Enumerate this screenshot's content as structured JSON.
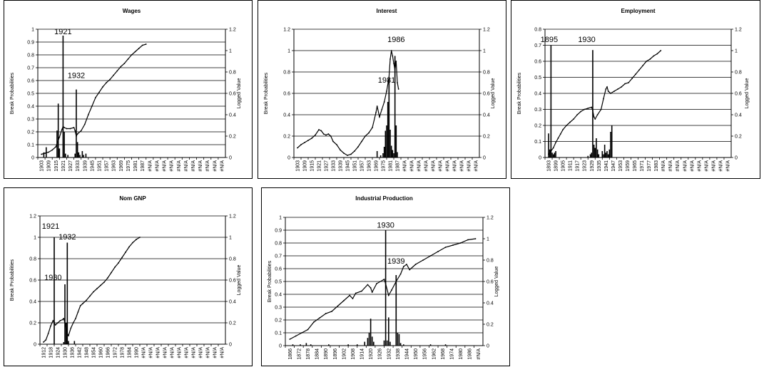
{
  "colors": {
    "line": "#000000",
    "bar": "#000000",
    "grid": "#000000",
    "background": "#ffffff"
  },
  "chart_data": [
    {
      "type": "bar",
      "title": "Wages",
      "ylabel": "Break Probabilities",
      "y2label": "Logged Value",
      "ylim": [
        0,
        1
      ],
      "y_ticks": [
        "0",
        "0.1",
        "0.2",
        "0.3",
        "0.4",
        "0.5",
        "0.6",
        "0.7",
        "0.8",
        "0.9",
        "1"
      ],
      "y2lim": [
        0,
        1.2
      ],
      "y2_ticks": [
        "0",
        "0.2",
        "0.4",
        "0.6",
        "0.8",
        "1",
        "1.2"
      ],
      "x_ticks": [
        "1903",
        "1909",
        "1915",
        "1921",
        "1927",
        "1933",
        "1939",
        "1945",
        "1951",
        "1957",
        "1963",
        "1969",
        "1975",
        "1981",
        "1987",
        "#N/A",
        "#N/A",
        "#N/A",
        "#N/A",
        "#N/A",
        "#N/A",
        "#N/A",
        "#N/A",
        "#N/A",
        "#N/A",
        "#N/A"
      ],
      "annotations": [
        {
          "text": "1921",
          "x": 1921,
          "y": 0.96
        },
        {
          "text": "1932",
          "x": 1932,
          "y": 0.62
        }
      ],
      "bar_series": {
        "name": "Break Probabilities",
        "x": [
          1905,
          1907,
          1916,
          1917,
          1918,
          1921,
          1922,
          1923,
          1925,
          1931,
          1932,
          1933,
          1934,
          1935,
          1937,
          1938,
          1940
        ],
        "values": [
          0.04,
          0.08,
          0.21,
          0.42,
          0.07,
          0.95,
          0.2,
          0.03,
          0.02,
          0.03,
          0.53,
          0.12,
          0.04,
          0.02,
          0.05,
          0.02,
          0.03
        ]
      },
      "line_series": {
        "name": "Logged Value",
        "x": [
          1903,
          1906,
          1909,
          1912,
          1915,
          1918,
          1920,
          1921,
          1922,
          1924,
          1927,
          1930,
          1931,
          1932,
          1933,
          1936,
          1939,
          1942,
          1945,
          1948,
          1951,
          1954,
          1957,
          1960,
          1963,
          1966,
          1969,
          1972,
          1975,
          1978,
          1981,
          1984,
          1987,
          1990
        ],
        "values": [
          0.03,
          0.04,
          0.05,
          0.07,
          0.1,
          0.19,
          0.26,
          0.29,
          0.28,
          0.27,
          0.27,
          0.28,
          0.25,
          0.2,
          0.22,
          0.25,
          0.31,
          0.4,
          0.48,
          0.56,
          0.61,
          0.66,
          0.7,
          0.73,
          0.77,
          0.81,
          0.85,
          0.88,
          0.92,
          0.96,
          0.99,
          1.02,
          1.05,
          1.06
        ]
      }
    },
    {
      "type": "bar",
      "title": "Interest",
      "ylabel": "Break Probabilities",
      "y2label": "Logged Value",
      "ylim": [
        0,
        1.2
      ],
      "y_ticks": [
        "0",
        "0.2",
        "0.4",
        "0.6",
        "0.8",
        "1",
        "1.2"
      ],
      "y2lim": [
        0,
        1.2
      ],
      "y2_ticks": [
        "0",
        "0.2",
        "0.4",
        "0.6",
        "0.8",
        "1",
        "1.2"
      ],
      "x_ticks": [
        "1903",
        "1909",
        "1915",
        "1921",
        "1927",
        "1933",
        "1939",
        "1945",
        "1951",
        "1957",
        "1963",
        "1969",
        "1975",
        "1981",
        "1987",
        "#N/A",
        "#N/A",
        "#N/A",
        "#N/A",
        "#N/A",
        "#N/A",
        "#N/A",
        "#N/A",
        "#N/A",
        "#N/A",
        "#N/A"
      ],
      "annotations": [
        {
          "text": "1986",
          "x": 1986,
          "y": 1.08
        },
        {
          "text": "1981",
          "x": 1978,
          "y": 0.7
        }
      ],
      "bar_series": {
        "name": "Break Probabilities",
        "x": [
          1970,
          1973,
          1975,
          1976,
          1977,
          1978,
          1979,
          1980,
          1981,
          1982,
          1983,
          1984,
          1985,
          1986,
          1987
        ],
        "values": [
          0.06,
          0.02,
          0.04,
          0.1,
          0.25,
          0.3,
          0.52,
          0.74,
          0.26,
          0.11,
          0.07,
          0.04,
          0.95,
          0.3,
          0.05
        ]
      },
      "line_series": {
        "name": "Logged Value",
        "x": [
          1903,
          1906,
          1909,
          1912,
          1915,
          1918,
          1921,
          1923,
          1925,
          1927,
          1929,
          1931,
          1933,
          1936,
          1939,
          1942,
          1945,
          1948,
          1951,
          1954,
          1957,
          1960,
          1963,
          1966,
          1969,
          1970,
          1972,
          1974,
          1976,
          1978,
          1980,
          1981,
          1982,
          1983,
          1984,
          1985,
          1986,
          1987,
          1988
        ],
        "values": [
          0.09,
          0.12,
          0.14,
          0.16,
          0.18,
          0.21,
          0.26,
          0.25,
          0.22,
          0.21,
          0.22,
          0.2,
          0.15,
          0.12,
          0.07,
          0.04,
          0.02,
          0.03,
          0.06,
          0.1,
          0.15,
          0.2,
          0.23,
          0.28,
          0.42,
          0.48,
          0.38,
          0.45,
          0.52,
          0.62,
          0.75,
          0.92,
          1.0,
          0.95,
          0.88,
          0.82,
          0.9,
          0.7,
          0.64
        ]
      }
    },
    {
      "type": "bar",
      "title": "Employment",
      "ylabel": "Break Probabilities",
      "y2label": "Logged Value",
      "ylim": [
        0,
        0.8
      ],
      "y_ticks": [
        "0",
        "0.1",
        "0.2",
        "0.3",
        "0.4",
        "0.5",
        "0.6",
        "0.7",
        "0.8"
      ],
      "y2lim": [
        0,
        1.2
      ],
      "y2_ticks": [
        "0",
        "0.2",
        "0.4",
        "0.6",
        "0.8",
        "1",
        "1.2"
      ],
      "x_ticks": [
        "1893",
        "1899",
        "1905",
        "1911",
        "1917",
        "1923",
        "1929",
        "1935",
        "1941",
        "1947",
        "1953",
        "1959",
        "1965",
        "1971",
        "1977",
        "1983",
        "#N/A",
        "#N/A",
        "#N/A",
        "#N/A",
        "#N/A",
        "#N/A",
        "#N/A",
        "#N/A",
        "#N/A",
        "#N/A"
      ],
      "annotations": [
        {
          "text": "1895",
          "x": 1893.5,
          "y": 0.72
        },
        {
          "text": "1930",
          "x": 1925,
          "y": 0.72
        }
      ],
      "bar_series": {
        "name": "Break Probabilities",
        "x": [
          1893,
          1894,
          1895,
          1896,
          1897,
          1898,
          1899,
          1926,
          1928,
          1929,
          1930,
          1931,
          1932,
          1933,
          1934,
          1935,
          1938,
          1939,
          1940,
          1941,
          1942,
          1943,
          1944,
          1945,
          1946
        ],
        "values": [
          0.15,
          0.05,
          0.7,
          0.03,
          0.02,
          0.03,
          0.04,
          0.01,
          0.02,
          0.03,
          0.67,
          0.08,
          0.06,
          0.12,
          0.05,
          0.02,
          0.04,
          0.02,
          0.08,
          0.03,
          0.04,
          0.02,
          0.05,
          0.16,
          0.2
        ]
      },
      "line_series": {
        "name": "Logged Value",
        "x": [
          1893,
          1895,
          1897,
          1899,
          1901,
          1903,
          1905,
          1908,
          1911,
          1914,
          1917,
          1920,
          1923,
          1926,
          1929,
          1930,
          1931,
          1932,
          1934,
          1937,
          1939,
          1941,
          1942,
          1943,
          1945,
          1948,
          1951,
          1954,
          1957,
          1960,
          1963,
          1966,
          1969,
          1972,
          1975,
          1978,
          1981,
          1984,
          1987
        ],
        "values": [
          0.03,
          0.06,
          0.09,
          0.14,
          0.18,
          0.22,
          0.26,
          0.3,
          0.33,
          0.36,
          0.4,
          0.43,
          0.45,
          0.46,
          0.47,
          0.44,
          0.38,
          0.36,
          0.4,
          0.45,
          0.55,
          0.64,
          0.66,
          0.62,
          0.6,
          0.62,
          0.64,
          0.66,
          0.69,
          0.7,
          0.74,
          0.78,
          0.82,
          0.86,
          0.9,
          0.92,
          0.95,
          0.97,
          1.0
        ]
      }
    },
    {
      "type": "bar",
      "title": "Nom GNP",
      "ylabel": "Break Probabilities",
      "y2label": "Logged Value",
      "ylim": [
        0,
        1.2
      ],
      "y_ticks": [
        "0",
        "0.2",
        "0.4",
        "0.6",
        "0.8",
        "1",
        "1.2"
      ],
      "y2lim": [
        0,
        1.2
      ],
      "y2_ticks": [
        "0",
        "0.2",
        "0.4",
        "0.6",
        "0.8",
        "1",
        "1.2"
      ],
      "x_ticks": [
        "1912",
        "1918",
        "1924",
        "1930",
        "1936",
        "1942",
        "1948",
        "1954",
        "1960",
        "1966",
        "1972",
        "1978",
        "1984",
        "1990",
        "#N/A",
        "#N/A",
        "#N/A",
        "#N/A",
        "#N/A",
        "#N/A",
        "#N/A",
        "#N/A",
        "#N/A",
        "#N/A",
        "#N/A",
        "#N/A"
      ],
      "annotations": [
        {
          "text": "1921",
          "x": 1918,
          "y": 1.08
        },
        {
          "text": "1932",
          "x": 1932,
          "y": 0.98
        },
        {
          "text": "1930",
          "x": 1920,
          "y": 0.6
        }
      ],
      "bar_series": {
        "name": "Break Probabilities",
        "x": [
          1921,
          1929,
          1930,
          1931,
          1932,
          1933,
          1938
        ],
        "values": [
          1.0,
          0.02,
          0.56,
          0.2,
          0.95,
          0.03,
          0.03
        ]
      },
      "line_series": {
        "name": "Logged Value",
        "x": [
          1912,
          1914,
          1916,
          1918,
          1920,
          1921,
          1922,
          1924,
          1926,
          1928,
          1929,
          1930,
          1931,
          1932,
          1933,
          1935,
          1937,
          1939,
          1941,
          1943,
          1945,
          1948,
          1951,
          1954,
          1957,
          1960,
          1963,
          1966,
          1969,
          1972,
          1975,
          1978,
          1981,
          1984,
          1987,
          1990,
          1993
        ],
        "values": [
          0.02,
          0.04,
          0.1,
          0.17,
          0.22,
          0.2,
          0.18,
          0.2,
          0.22,
          0.23,
          0.24,
          0.2,
          0.15,
          0.1,
          0.08,
          0.15,
          0.2,
          0.24,
          0.3,
          0.36,
          0.38,
          0.41,
          0.45,
          0.49,
          0.52,
          0.55,
          0.58,
          0.62,
          0.67,
          0.72,
          0.76,
          0.81,
          0.86,
          0.91,
          0.95,
          0.98,
          1.0
        ]
      }
    },
    {
      "type": "bar",
      "title": "Industrial Production",
      "ylabel": "Break Probabilities",
      "y2label": "Logged Value",
      "ylim": [
        0,
        1
      ],
      "y_ticks": [
        "0",
        "0.1",
        "0.2",
        "0.3",
        "0.4",
        "0.5",
        "0.6",
        "0.7",
        "0.8",
        "0.9",
        "1"
      ],
      "y2lim": [
        0,
        1.2
      ],
      "y2_ticks": [
        "0",
        "0.2",
        "0.4",
        "0.6",
        "0.8",
        "1",
        "1.2"
      ],
      "x_ticks": [
        "1866",
        "1872",
        "1878",
        "1884",
        "1890",
        "1896",
        "1902",
        "1908",
        "1914",
        "1920",
        "1926",
        "1932",
        "1938",
        "1944",
        "1950",
        "1956",
        "1962",
        "1968",
        "1974",
        "1980",
        "1986",
        "#N/A"
      ],
      "annotations": [
        {
          "text": "1930",
          "x": 1930,
          "y": 0.92
        },
        {
          "text": "1939",
          "x": 1937,
          "y": 0.64
        }
      ],
      "bar_series": {
        "name": "Break Probabilities",
        "x": [
          1868,
          1873,
          1877,
          1880,
          1892,
          1905,
          1911,
          1916,
          1918,
          1919,
          1920,
          1921,
          1922,
          1929,
          1930,
          1931,
          1932,
          1933,
          1937,
          1938,
          1939,
          1940,
          1942,
          1960,
          1970
        ],
        "values": [
          0.01,
          0.01,
          0.02,
          0.01,
          0.01,
          0.01,
          0.01,
          0.03,
          0.06,
          0.1,
          0.21,
          0.07,
          0.03,
          0.04,
          0.9,
          0.04,
          0.22,
          0.03,
          0.55,
          0.1,
          0.09,
          0.02,
          0.01,
          0.01,
          0.01
        ]
      },
      "line_series": {
        "name": "Logged Value",
        "x": [
          1866,
          1870,
          1874,
          1878,
          1882,
          1886,
          1890,
          1894,
          1898,
          1902,
          1906,
          1908,
          1910,
          1914,
          1918,
          1920,
          1921,
          1924,
          1929,
          1930,
          1932,
          1934,
          1937,
          1940,
          1942,
          1944,
          1946,
          1950,
          1955,
          1960,
          1965,
          1970,
          1975,
          1980,
          1985,
          1990
        ],
        "values": [
          0.06,
          0.09,
          0.12,
          0.15,
          0.22,
          0.26,
          0.3,
          0.32,
          0.37,
          0.42,
          0.47,
          0.44,
          0.49,
          0.51,
          0.57,
          0.54,
          0.5,
          0.58,
          0.62,
          0.58,
          0.47,
          0.52,
          0.6,
          0.67,
          0.74,
          0.76,
          0.71,
          0.76,
          0.8,
          0.84,
          0.88,
          0.92,
          0.94,
          0.96,
          0.99,
          1.0
        ]
      }
    }
  ]
}
